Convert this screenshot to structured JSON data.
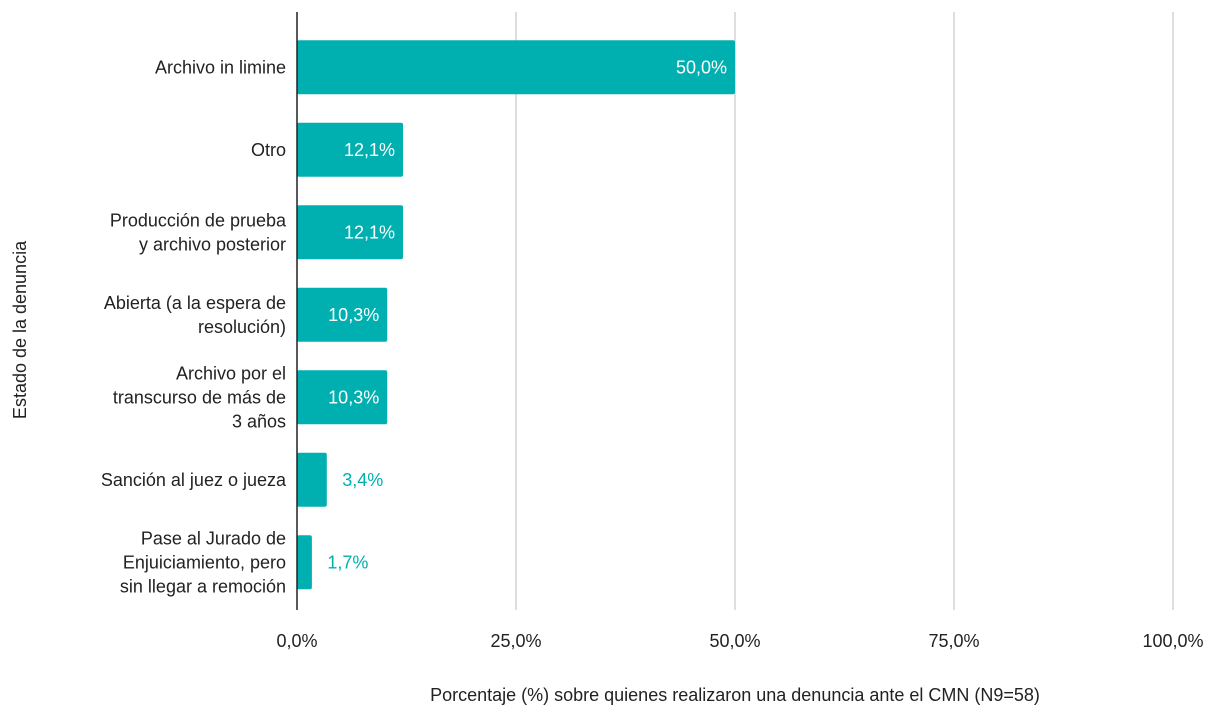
{
  "chart_data": {
    "type": "bar",
    "orientation": "horizontal",
    "categories": [
      [
        "Archivo in limine"
      ],
      [
        "Otro"
      ],
      [
        "Producción de prueba",
        "y archivo posterior"
      ],
      [
        "Abierta (a la espera de",
        "resolución)"
      ],
      [
        "Archivo por el",
        "transcurso de más de",
        "3 años"
      ],
      [
        "Sanción al juez o jueza"
      ],
      [
        "Pase al Jurado de",
        "Enjuiciamiento, pero",
        "sin llegar a remoción"
      ]
    ],
    "values": [
      50.0,
      12.1,
      12.1,
      10.3,
      10.3,
      3.4,
      1.7
    ],
    "value_labels": [
      "50,0%",
      "12,1%",
      "12,1%",
      "10,3%",
      "10,3%",
      "3,4%",
      "1,7%"
    ],
    "xticks": [
      0,
      25,
      50,
      75,
      100
    ],
    "xtick_labels": [
      "0,0%",
      "25,0%",
      "50,0%",
      "75,0%",
      "100,0%"
    ],
    "xlim": [
      0,
      100
    ],
    "xlabel": "Porcentaje (%) sobre quienes realizaron una denuncia ante el CMN (N9=58)",
    "ylabel": "Estado de la denuncia",
    "grid": "vertical",
    "legend": "none",
    "bar_color": "#00b0b0",
    "label_inside_color": "#ffffff",
    "label_outside_color": "#00b0b0"
  }
}
